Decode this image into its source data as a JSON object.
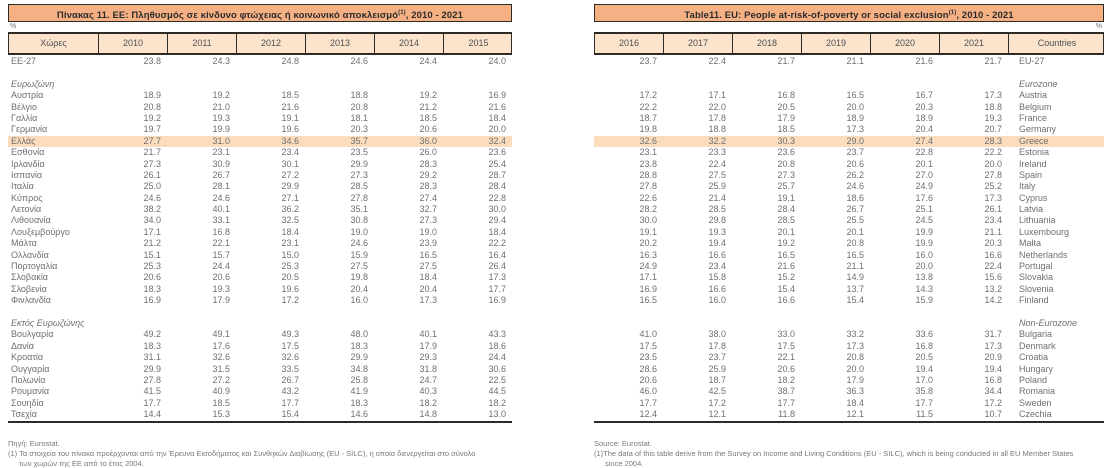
{
  "colors": {
    "title_band": "#f5b183",
    "header_cell": "#fbe3cc",
    "highlight_row": "#fbdcbd"
  },
  "left": {
    "title_text": "Πίνακας 11. ΕΕ: Πληθυσμός σε κίνδυνο φτώχειας ή κοινωνικό αποκλεισμό",
    "title_superscript": "(1)",
    "title_suffix": ", 2010 - 2021",
    "percent_label": "%",
    "country_col_header": "Χώρες",
    "year_headers": [
      "2010",
      "2011",
      "2012",
      "2013",
      "2014",
      "2015"
    ],
    "source": "Πηγή: Eurostat.",
    "footnote_line1": "(1) Τα στοιχεία του πίνακα προέρχονται από την Έρευνα Εισοδήματος και Συνθηκών Διαβίωσης (EU - SILC), η οποία διενεργείται στο σύνολο",
    "footnote_line2": "των χωρών της ΕΕ από το έτος 2004."
  },
  "right": {
    "title_text": "Table11. EU: People at-risk-of-poverty or social exclusion",
    "title_superscript": "(1)",
    "title_suffix": ", 2010 - 2021",
    "percent_label": "%",
    "country_col_header": "Countries",
    "year_headers": [
      "2016",
      "2017",
      "2018",
      "2019",
      "2020",
      "2021"
    ],
    "source": "Source: Eurostat.",
    "footnote_line1": "(1)The data of this table derive from the Survey on Income and Living Conditions (EU - SILC), which is being conducted in all EU Member States",
    "footnote_line2": "since 2004."
  },
  "rows": [
    {
      "type": "data",
      "gr": "ΕΕ-27",
      "en": "EU-27",
      "left_values": [
        "23.8",
        "24.3",
        "24.8",
        "24.6",
        "24.4",
        "24.0"
      ],
      "right_values": [
        "23.7",
        "22.4",
        "21.7",
        "21.1",
        "21.6",
        "21.7"
      ]
    },
    {
      "type": "spacer"
    },
    {
      "type": "section",
      "gr": "Ευρωζώνη",
      "en": "Eurozone"
    },
    {
      "type": "data",
      "gr": "Αυστρία",
      "en": "Austria",
      "left_values": [
        "18.9",
        "19.2",
        "18.5",
        "18.8",
        "19.2",
        "16.9"
      ],
      "right_values": [
        "17.2",
        "17.1",
        "16.8",
        "16.5",
        "16.7",
        "17.3"
      ]
    },
    {
      "type": "data",
      "gr": "Βέλγιο",
      "en": "Belgium",
      "left_values": [
        "20.8",
        "21.0",
        "21.6",
        "20.8",
        "21.2",
        "21.6"
      ],
      "right_values": [
        "22.2",
        "22.0",
        "20.5",
        "20.0",
        "20.3",
        "18.8"
      ]
    },
    {
      "type": "data",
      "gr": "Γαλλία",
      "en": "France",
      "left_values": [
        "19.2",
        "19.3",
        "19.1",
        "18.1",
        "18.5",
        "18.4"
      ],
      "right_values": [
        "18.7",
        "17.8",
        "17.9",
        "18.9",
        "18.9",
        "19.3"
      ]
    },
    {
      "type": "data",
      "gr": "Γερμανία",
      "en": "Germany",
      "left_values": [
        "19.7",
        "19.9",
        "19.6",
        "20.3",
        "20.6",
        "20.0"
      ],
      "right_values": [
        "19.8",
        "18.8",
        "18.5",
        "17.3",
        "20.4",
        "20.7"
      ]
    },
    {
      "type": "data",
      "highlight": true,
      "gr": "Ελλάς",
      "en": "Greece",
      "left_values": [
        "27.7",
        "31.0",
        "34.6",
        "35.7",
        "36.0",
        "32.4"
      ],
      "right_values": [
        "32.6",
        "32.2",
        "30.3",
        "29.0",
        "27.4",
        "28.3"
      ]
    },
    {
      "type": "data",
      "gr": "Εσθονία",
      "en": "Estonia",
      "left_values": [
        "21.7",
        "23.1",
        "23.4",
        "23.5",
        "26.0",
        "23.6"
      ],
      "right_values": [
        "23.1",
        "23.3",
        "23.6",
        "23.7",
        "22.8",
        "22.2"
      ]
    },
    {
      "type": "data",
      "gr": "Ιρλανδία",
      "en": "Ireland",
      "left_values": [
        "27.3",
        "30.9",
        "30.1",
        "29.9",
        "28.3",
        "25.4"
      ],
      "right_values": [
        "23.8",
        "22.4",
        "20.8",
        "20.6",
        "20.1",
        "20.0"
      ]
    },
    {
      "type": "data",
      "gr": "Ισπανία",
      "en": "Spain",
      "left_values": [
        "26.1",
        "26.7",
        "27.2",
        "27.3",
        "29.2",
        "28.7"
      ],
      "right_values": [
        "28.8",
        "27.5",
        "27.3",
        "26.2",
        "27.0",
        "27.8"
      ]
    },
    {
      "type": "data",
      "gr": "Ιταλία",
      "en": "Italy",
      "left_values": [
        "25.0",
        "28.1",
        "29.9",
        "28.5",
        "28.3",
        "28.4"
      ],
      "right_values": [
        "27.8",
        "25.9",
        "25.7",
        "24.6",
        "24.9",
        "25.2"
      ]
    },
    {
      "type": "data",
      "gr": "Κύπρος",
      "en": "Cyprus",
      "left_values": [
        "24.6",
        "24.6",
        "27.1",
        "27.8",
        "27.4",
        "22.8"
      ],
      "right_values": [
        "22.6",
        "21.4",
        "19.1",
        "18.6",
        "17.6",
        "17.3"
      ]
    },
    {
      "type": "data",
      "gr": "Λετονία",
      "en": "Latvia",
      "left_values": [
        "38.2",
        "40.1",
        "36.2",
        "35.1",
        "32.7",
        "30.0"
      ],
      "right_values": [
        "28.2",
        "28.5",
        "28.4",
        "26.7",
        "25.1",
        "26.1"
      ]
    },
    {
      "type": "data",
      "gr": "Λιθουανία",
      "en": "Lithuania",
      "left_values": [
        "34.0",
        "33.1",
        "32.5",
        "30.8",
        "27.3",
        "29.4"
      ],
      "right_values": [
        "30.0",
        "29.8",
        "28.5",
        "25.5",
        "24.5",
        "23.4"
      ]
    },
    {
      "type": "data",
      "gr": "Λουξεμβούργο",
      "en": "Luxembourg",
      "left_values": [
        "17.1",
        "16.8",
        "18.4",
        "19.0",
        "19.0",
        "18.4"
      ],
      "right_values": [
        "19.1",
        "19.3",
        "20.1",
        "20.1",
        "19.9",
        "21.1"
      ]
    },
    {
      "type": "data",
      "gr": "Μάλτα",
      "en": "Malta",
      "left_values": [
        "21.2",
        "22.1",
        "23.1",
        "24.6",
        "23.9",
        "22.2"
      ],
      "right_values": [
        "20.2",
        "19.4",
        "19.2",
        "20.8",
        "19.9",
        "20.3"
      ]
    },
    {
      "type": "data",
      "gr": "Ολλανδία",
      "en": "Netherlands",
      "left_values": [
        "15.1",
        "15.7",
        "15.0",
        "15.9",
        "16.5",
        "16.4"
      ],
      "right_values": [
        "16.3",
        "16.6",
        "16.5",
        "16.5",
        "16.0",
        "16.6"
      ]
    },
    {
      "type": "data",
      "gr": "Πορτογαλία",
      "en": "Portugal",
      "left_values": [
        "25.3",
        "24.4",
        "25.3",
        "27.5",
        "27.5",
        "26.4"
      ],
      "right_values": [
        "24.9",
        "23.4",
        "21.6",
        "21.1",
        "20.0",
        "22.4"
      ]
    },
    {
      "type": "data",
      "gr": "Σλοβακία",
      "en": "Slovakia",
      "left_values": [
        "20.6",
        "20.6",
        "20.5",
        "19.8",
        "18.4",
        "17.3"
      ],
      "right_values": [
        "17.1",
        "15.8",
        "15.2",
        "14.9",
        "13.8",
        "15.6"
      ]
    },
    {
      "type": "data",
      "gr": "Σλοβενία",
      "en": "Slovenia",
      "left_values": [
        "18.3",
        "19.3",
        "19.6",
        "20.4",
        "20.4",
        "17.7"
      ],
      "right_values": [
        "16.9",
        "16.6",
        "15.4",
        "13.7",
        "14.3",
        "13.2"
      ]
    },
    {
      "type": "data",
      "gr": "Φινλανδία",
      "en": "Finland",
      "left_values": [
        "16.9",
        "17.9",
        "17.2",
        "16.0",
        "17.3",
        "16.9"
      ],
      "right_values": [
        "16.5",
        "16.0",
        "16.6",
        "15.4",
        "15.9",
        "14.2"
      ]
    },
    {
      "type": "spacer"
    },
    {
      "type": "section",
      "gr": "Εκτός Ευρωζώνης",
      "en": "Non-Eurozone"
    },
    {
      "type": "data",
      "gr": "Βουλγαρία",
      "en": "Bulgaria",
      "left_values": [
        "49.2",
        "49.1",
        "49.3",
        "48.0",
        "40.1",
        "43.3"
      ],
      "right_values": [
        "41.0",
        "38.0",
        "33.0",
        "33.2",
        "33.6",
        "31.7"
      ]
    },
    {
      "type": "data",
      "gr": "Δανία",
      "en": "Denmark",
      "left_values": [
        "18.3",
        "17.6",
        "17.5",
        "18.3",
        "17.9",
        "18.6"
      ],
      "right_values": [
        "17.5",
        "17.8",
        "17.5",
        "17.3",
        "16.8",
        "17.3"
      ]
    },
    {
      "type": "data",
      "gr": "Κροατία",
      "en": "Croatia",
      "left_values": [
        "31.1",
        "32.6",
        "32.6",
        "29.9",
        "29.3",
        "24.4"
      ],
      "right_values": [
        "23.5",
        "23.7",
        "22.1",
        "20.8",
        "20.5",
        "20.9"
      ]
    },
    {
      "type": "data",
      "gr": "Ουγγαρία",
      "en": "Hungary",
      "left_values": [
        "29.9",
        "31.5",
        "33.5",
        "34.8",
        "31.8",
        "30.6"
      ],
      "right_values": [
        "28.6",
        "25.9",
        "20.6",
        "20.0",
        "19.4",
        "19.4"
      ]
    },
    {
      "type": "data",
      "gr": "Πολωνία",
      "en": "Poland",
      "left_values": [
        "27.8",
        "27.2",
        "26.7",
        "25.8",
        "24.7",
        "22.5"
      ],
      "right_values": [
        "20.6",
        "18.7",
        "18.2",
        "17.9",
        "17.0",
        "16.8"
      ]
    },
    {
      "type": "data",
      "gr": "Ρουμανία",
      "en": "Romania",
      "left_values": [
        "41.5",
        "40.9",
        "43.2",
        "41.9",
        "40.3",
        "44.5"
      ],
      "right_values": [
        "46.0",
        "42.5",
        "38.7",
        "36.3",
        "35.8",
        "34.4"
      ]
    },
    {
      "type": "data",
      "gr": "Σουηδία",
      "en": "Sweden",
      "left_values": [
        "17.7",
        "18.5",
        "17.7",
        "18.3",
        "18.2",
        "18.2"
      ],
      "right_values": [
        "17.7",
        "17.2",
        "17.7",
        "18.4",
        "17.7",
        "17.2"
      ]
    },
    {
      "type": "data",
      "gr": "Τσεχία",
      "en": "Czechia",
      "left_values": [
        "14.4",
        "15.3",
        "15.4",
        "14.6",
        "14.8",
        "13.0"
      ],
      "right_values": [
        "12.4",
        "12.1",
        "11.8",
        "12.1",
        "11.5",
        "10.7"
      ]
    }
  ]
}
